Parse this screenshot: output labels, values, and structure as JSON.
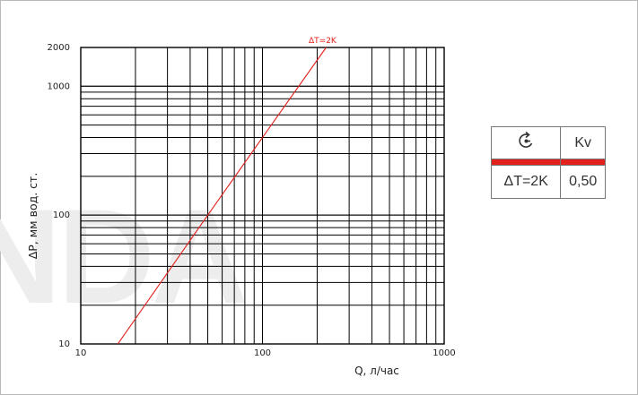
{
  "chart_data": {
    "type": "line",
    "title": "",
    "xlabel": "Q, л/час",
    "ylabel": "ΔP, мм вод. ст.",
    "xscale": "log",
    "yscale": "log",
    "xlim": [
      10,
      1000
    ],
    "ylim": [
      10,
      2000
    ],
    "grid": true,
    "x_tick_labels": [
      "10",
      "100",
      "1000"
    ],
    "y_tick_labels": [
      "10",
      "100",
      "1000",
      "2000"
    ],
    "series": [
      {
        "name": "ΔT=2K",
        "color": "#e2211c",
        "x": [
          16,
          50,
          100,
          224
        ],
        "y": [
          10,
          100,
          400,
          2000
        ]
      }
    ],
    "annotations": [
      {
        "text": "ΔT=2K",
        "color": "#e2211c"
      }
    ]
  },
  "kv_table": {
    "header_icon": "valve-setting-icon",
    "header_kv": "Kv",
    "band_color": "#e2211c",
    "row_label": "ΔT=2K",
    "row_value": "0,50"
  },
  "watermark": {
    "text": "NDA",
    "color": "#ededed"
  }
}
